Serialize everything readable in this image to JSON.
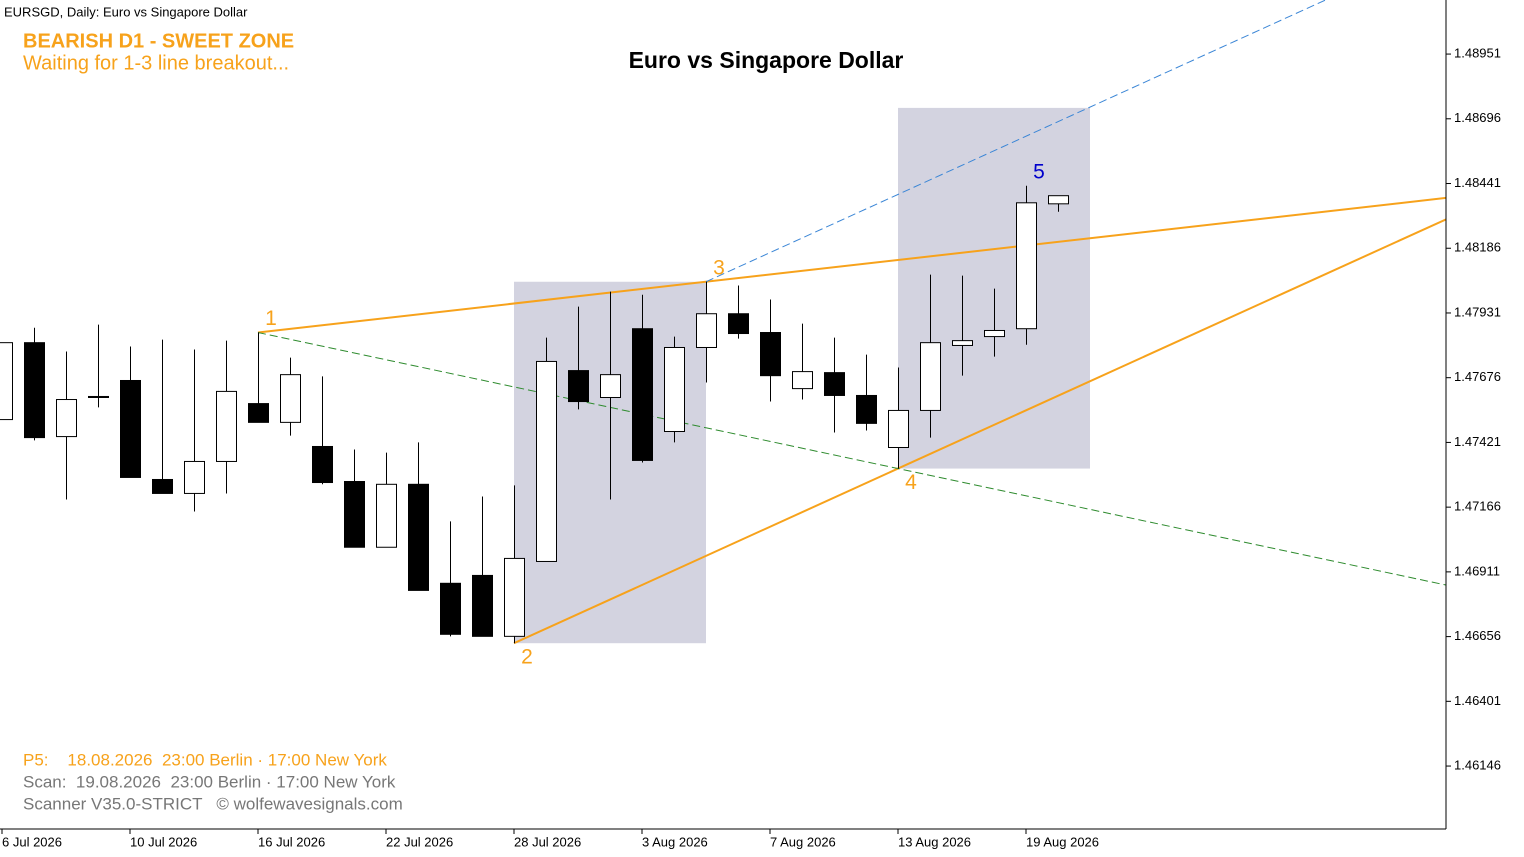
{
  "chart_data": {
    "type": "candlestick",
    "header": "EURSGD, Daily:  Euro vs Singapore Dollar",
    "title": "Euro vs Singapore Dollar",
    "status_lines": [
      "BEARISH D1 - SWEET ZONE",
      "Waiting for 1-3 line breakout..."
    ],
    "footer_lines": [
      "P5:    18.08.2026  23:00 Berlin · 17:00 New York",
      "Scan:  19.08.2026  23:00 Berlin · 17:00 New York",
      "Scanner V35.0-STRICT   © wolfewavesignals.com"
    ],
    "categories": [
      "6 Jul 2026",
      null,
      null,
      null,
      "10 Jul 2026",
      null,
      null,
      null,
      "16 Jul 2026",
      null,
      null,
      null,
      "22 Jul 2026",
      null,
      null,
      null,
      "28 Jul 2026",
      null,
      null,
      null,
      "3 Aug 2026",
      null,
      null,
      null,
      "7 Aug 2026",
      null,
      null,
      null,
      "13 Aug 2026",
      null,
      null,
      null,
      "19 Aug 2026",
      null
    ],
    "open": [
      1.47511,
      1.47814,
      1.47444,
      1.47598,
      1.47665,
      1.47275,
      1.4722,
      1.47346,
      1.47574,
      1.475,
      1.47405,
      1.47267,
      1.47008,
      1.47256,
      1.46866,
      1.46897,
      1.46657,
      1.46952,
      1.47704,
      1.47598,
      1.47869,
      1.47464,
      1.47795,
      1.47928,
      1.47854,
      1.47633,
      1.47696,
      1.47606,
      1.47401,
      1.47547,
      1.47803,
      1.47838,
      1.47869,
      1.48361
    ],
    "high": [
      1.47814,
      1.47873,
      1.47779,
      1.47885,
      1.47799,
      1.47826,
      1.47787,
      1.47822,
      1.47854,
      1.47755,
      1.47681,
      1.47393,
      1.47381,
      1.47421,
      1.4711,
      1.47208,
      1.47252,
      1.47834,
      1.47956,
      1.48015,
      1.48003,
      1.47838,
      1.48054,
      1.48039,
      1.47984,
      1.47889,
      1.47834,
      1.47767,
      1.47716,
      1.48082,
      1.48078,
      1.48027,
      1.48432,
      1.48393
    ],
    "low": [
      1.47511,
      1.47429,
      1.47196,
      1.47559,
      1.47283,
      1.4722,
      1.47149,
      1.4722,
      1.475,
      1.47448,
      1.47256,
      1.47008,
      1.47008,
      1.46838,
      1.46657,
      1.46657,
      1.4663,
      1.46952,
      1.47551,
      1.47196,
      1.47342,
      1.47421,
      1.47657,
      1.4783,
      1.47582,
      1.4759,
      1.4746,
      1.47468,
      1.47318,
      1.4744,
      1.47684,
      1.47759,
      1.47806,
      1.4833
    ],
    "close": [
      1.47814,
      1.4744,
      1.4759,
      1.47602,
      1.47283,
      1.4722,
      1.47346,
      1.47622,
      1.475,
      1.47688,
      1.47263,
      1.47008,
      1.47256,
      1.46838,
      1.46665,
      1.46657,
      1.46964,
      1.4774,
      1.47582,
      1.47688,
      1.4735,
      1.47795,
      1.47928,
      1.4785,
      1.47684,
      1.477,
      1.47606,
      1.47496,
      1.47547,
      1.47814,
      1.47822,
      1.47862,
      1.48365,
      1.48393
    ],
    "up_color": "#ffffff",
    "down_color": "#000000",
    "ylim": [
      1.45898,
      1.49164
    ],
    "yticks": [
      1.46146,
      1.46401,
      1.46656,
      1.46911,
      1.47166,
      1.47421,
      1.47676,
      1.47931,
      1.48186,
      1.48441,
      1.48696,
      1.48951
    ],
    "wave_points": [
      {
        "label": "1",
        "index": 8,
        "value": 1.47854,
        "color": "#f7a21b"
      },
      {
        "label": "2",
        "index": 16,
        "value": 1.4663,
        "color": "#f7a21b"
      },
      {
        "label": "3",
        "index": 22,
        "value": 1.48054,
        "color": "#f7a21b"
      },
      {
        "label": "4",
        "index": 28,
        "value": 1.47318,
        "color": "#f7a21b"
      },
      {
        "label": "5",
        "index": 32,
        "value": 1.48432,
        "color": "#0000cc"
      }
    ],
    "wave_lines": [
      {
        "points": [
          "1",
          "3"
        ],
        "color": "#f7a21b",
        "style": "solid"
      },
      {
        "points": [
          "2",
          "4"
        ],
        "color": "#f7a21b",
        "style": "solid"
      },
      {
        "points": [
          "1",
          "4"
        ],
        "color": "#2e8b2e",
        "style": "dashed"
      },
      {
        "points": [
          "3"
        ],
        "parallel": [
          "2",
          "4"
        ],
        "color": "#3b86d6",
        "style": "dashed"
      }
    ],
    "zones": [
      {
        "x": [
          16,
          22
        ],
        "y": [
          1.4663,
          1.48054
        ]
      },
      {
        "x": [
          28,
          34
        ],
        "y": [
          1.47318,
          1.48739
        ]
      }
    ],
    "zone_color": "#d3d3e0"
  }
}
